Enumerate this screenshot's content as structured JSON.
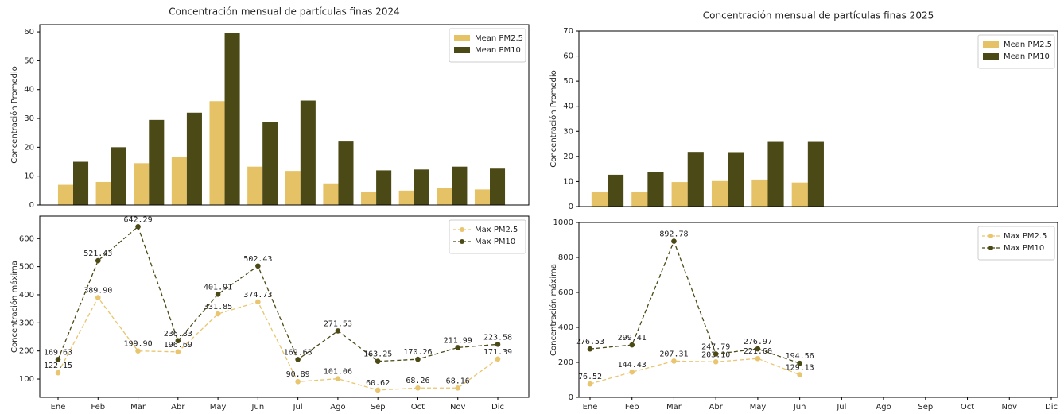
{
  "chart_data": [
    {
      "type": "bar",
      "title": "Concentración mensual de partículas finas 2024",
      "y_label": "Concentración Promedio",
      "ylim": [
        0,
        62.5
      ],
      "yticks": [
        0,
        10,
        20,
        30,
        40,
        50,
        60
      ],
      "legend": "upper right",
      "series": [
        {
          "name": "Mean PM2.5",
          "color": "#e5c266",
          "values": [
            7,
            8,
            14.5,
            16.7,
            36,
            13.3,
            11.8,
            7.5,
            4.5,
            5,
            5.8,
            5.4
          ]
        },
        {
          "name": "Mean PM10",
          "color": "#4b4a16",
          "values": [
            15,
            20,
            29.5,
            32,
            59.5,
            28.7,
            36.2,
            22,
            12,
            12.3,
            13.3,
            12.6
          ]
        }
      ]
    },
    {
      "type": "line",
      "y_label": "Concentración máxima",
      "categories": [
        "Ene",
        "Feb",
        "Mar",
        "Abr",
        "May",
        "Jun",
        "Jul",
        "Ago",
        "Sep",
        "Oct",
        "Nov",
        "Dic"
      ],
      "ylim": [
        35,
        680
      ],
      "yticks": [
        100,
        200,
        300,
        400,
        500,
        600
      ],
      "legend": "upper right",
      "series": [
        {
          "name": "Max PM2.5",
          "color": "#e8c56e",
          "values": [
            122.15,
            389.9,
            199.9,
            196.69,
            331.85,
            374.73,
            90.89,
            101.06,
            60.62,
            68.26,
            68.16,
            171.39
          ],
          "value_labels": [
            "122.15",
            "389.90",
            "199.90",
            "196.69",
            "331.85",
            "374.73",
            "90.89",
            "101.06",
            "60.62",
            "68.26",
            "68.16",
            "171.39"
          ]
        },
        {
          "name": "Max PM10",
          "color": "#4b4a16",
          "values": [
            169.63,
            521.43,
            642.29,
            236.33,
            401.91,
            502.43,
            169.63,
            271.53,
            163.25,
            170.26,
            211.99,
            223.58
          ],
          "value_labels": [
            "169.63",
            "521.43",
            "642.29",
            "236.33",
            "401.91",
            "502.43",
            "169.63",
            "271.53",
            "163.25",
            "170.26",
            "211.99",
            "223.58"
          ]
        }
      ]
    },
    {
      "type": "bar",
      "title": "Concentración mensual de partículas finas 2025",
      "y_label": "Concentración Promedio",
      "ylim": [
        0,
        70
      ],
      "yticks": [
        0,
        10,
        20,
        30,
        40,
        50,
        60,
        70
      ],
      "legend": "upper right",
      "series": [
        {
          "name": "Mean PM2.5",
          "color": "#e5c266",
          "values": [
            6,
            6,
            9.8,
            10.2,
            10.8,
            9.6,
            null,
            null,
            null,
            null,
            null,
            null
          ]
        },
        {
          "name": "Mean PM10",
          "color": "#4b4a16",
          "values": [
            12.7,
            13.8,
            21.8,
            21.7,
            25.8,
            25.8,
            null,
            null,
            null,
            null,
            null,
            null
          ]
        }
      ]
    },
    {
      "type": "line",
      "y_label": "Concentración máxima",
      "categories": [
        "Ene",
        "Feb",
        "Mar",
        "Abr",
        "May",
        "Jun",
        "Jul",
        "Ago",
        "Sep",
        "Oct",
        "Nov",
        "Dic"
      ],
      "ylim": [
        0,
        1000
      ],
      "yticks": [
        0,
        200,
        400,
        600,
        800,
        1000
      ],
      "legend": "upper right",
      "series": [
        {
          "name": "Max PM2.5",
          "color": "#e8c56e",
          "values": [
            76.52,
            144.43,
            207.31,
            203.1,
            221.6,
            129.13,
            null,
            null,
            null,
            null,
            null,
            null
          ],
          "value_labels": [
            "76.52",
            "144.43",
            "207.31",
            "203.10",
            "221.60",
            "129.13",
            null,
            null,
            null,
            null,
            null,
            null
          ]
        },
        {
          "name": "Max PM10",
          "color": "#4b4a16",
          "values": [
            276.53,
            299.41,
            892.78,
            247.79,
            276.97,
            194.56,
            null,
            null,
            null,
            null,
            null,
            null
          ],
          "value_labels": [
            "276.53",
            "299.41",
            "892.78",
            "247.79",
            "276.97",
            "194.56",
            null,
            null,
            null,
            null,
            null,
            null
          ]
        }
      ]
    }
  ]
}
